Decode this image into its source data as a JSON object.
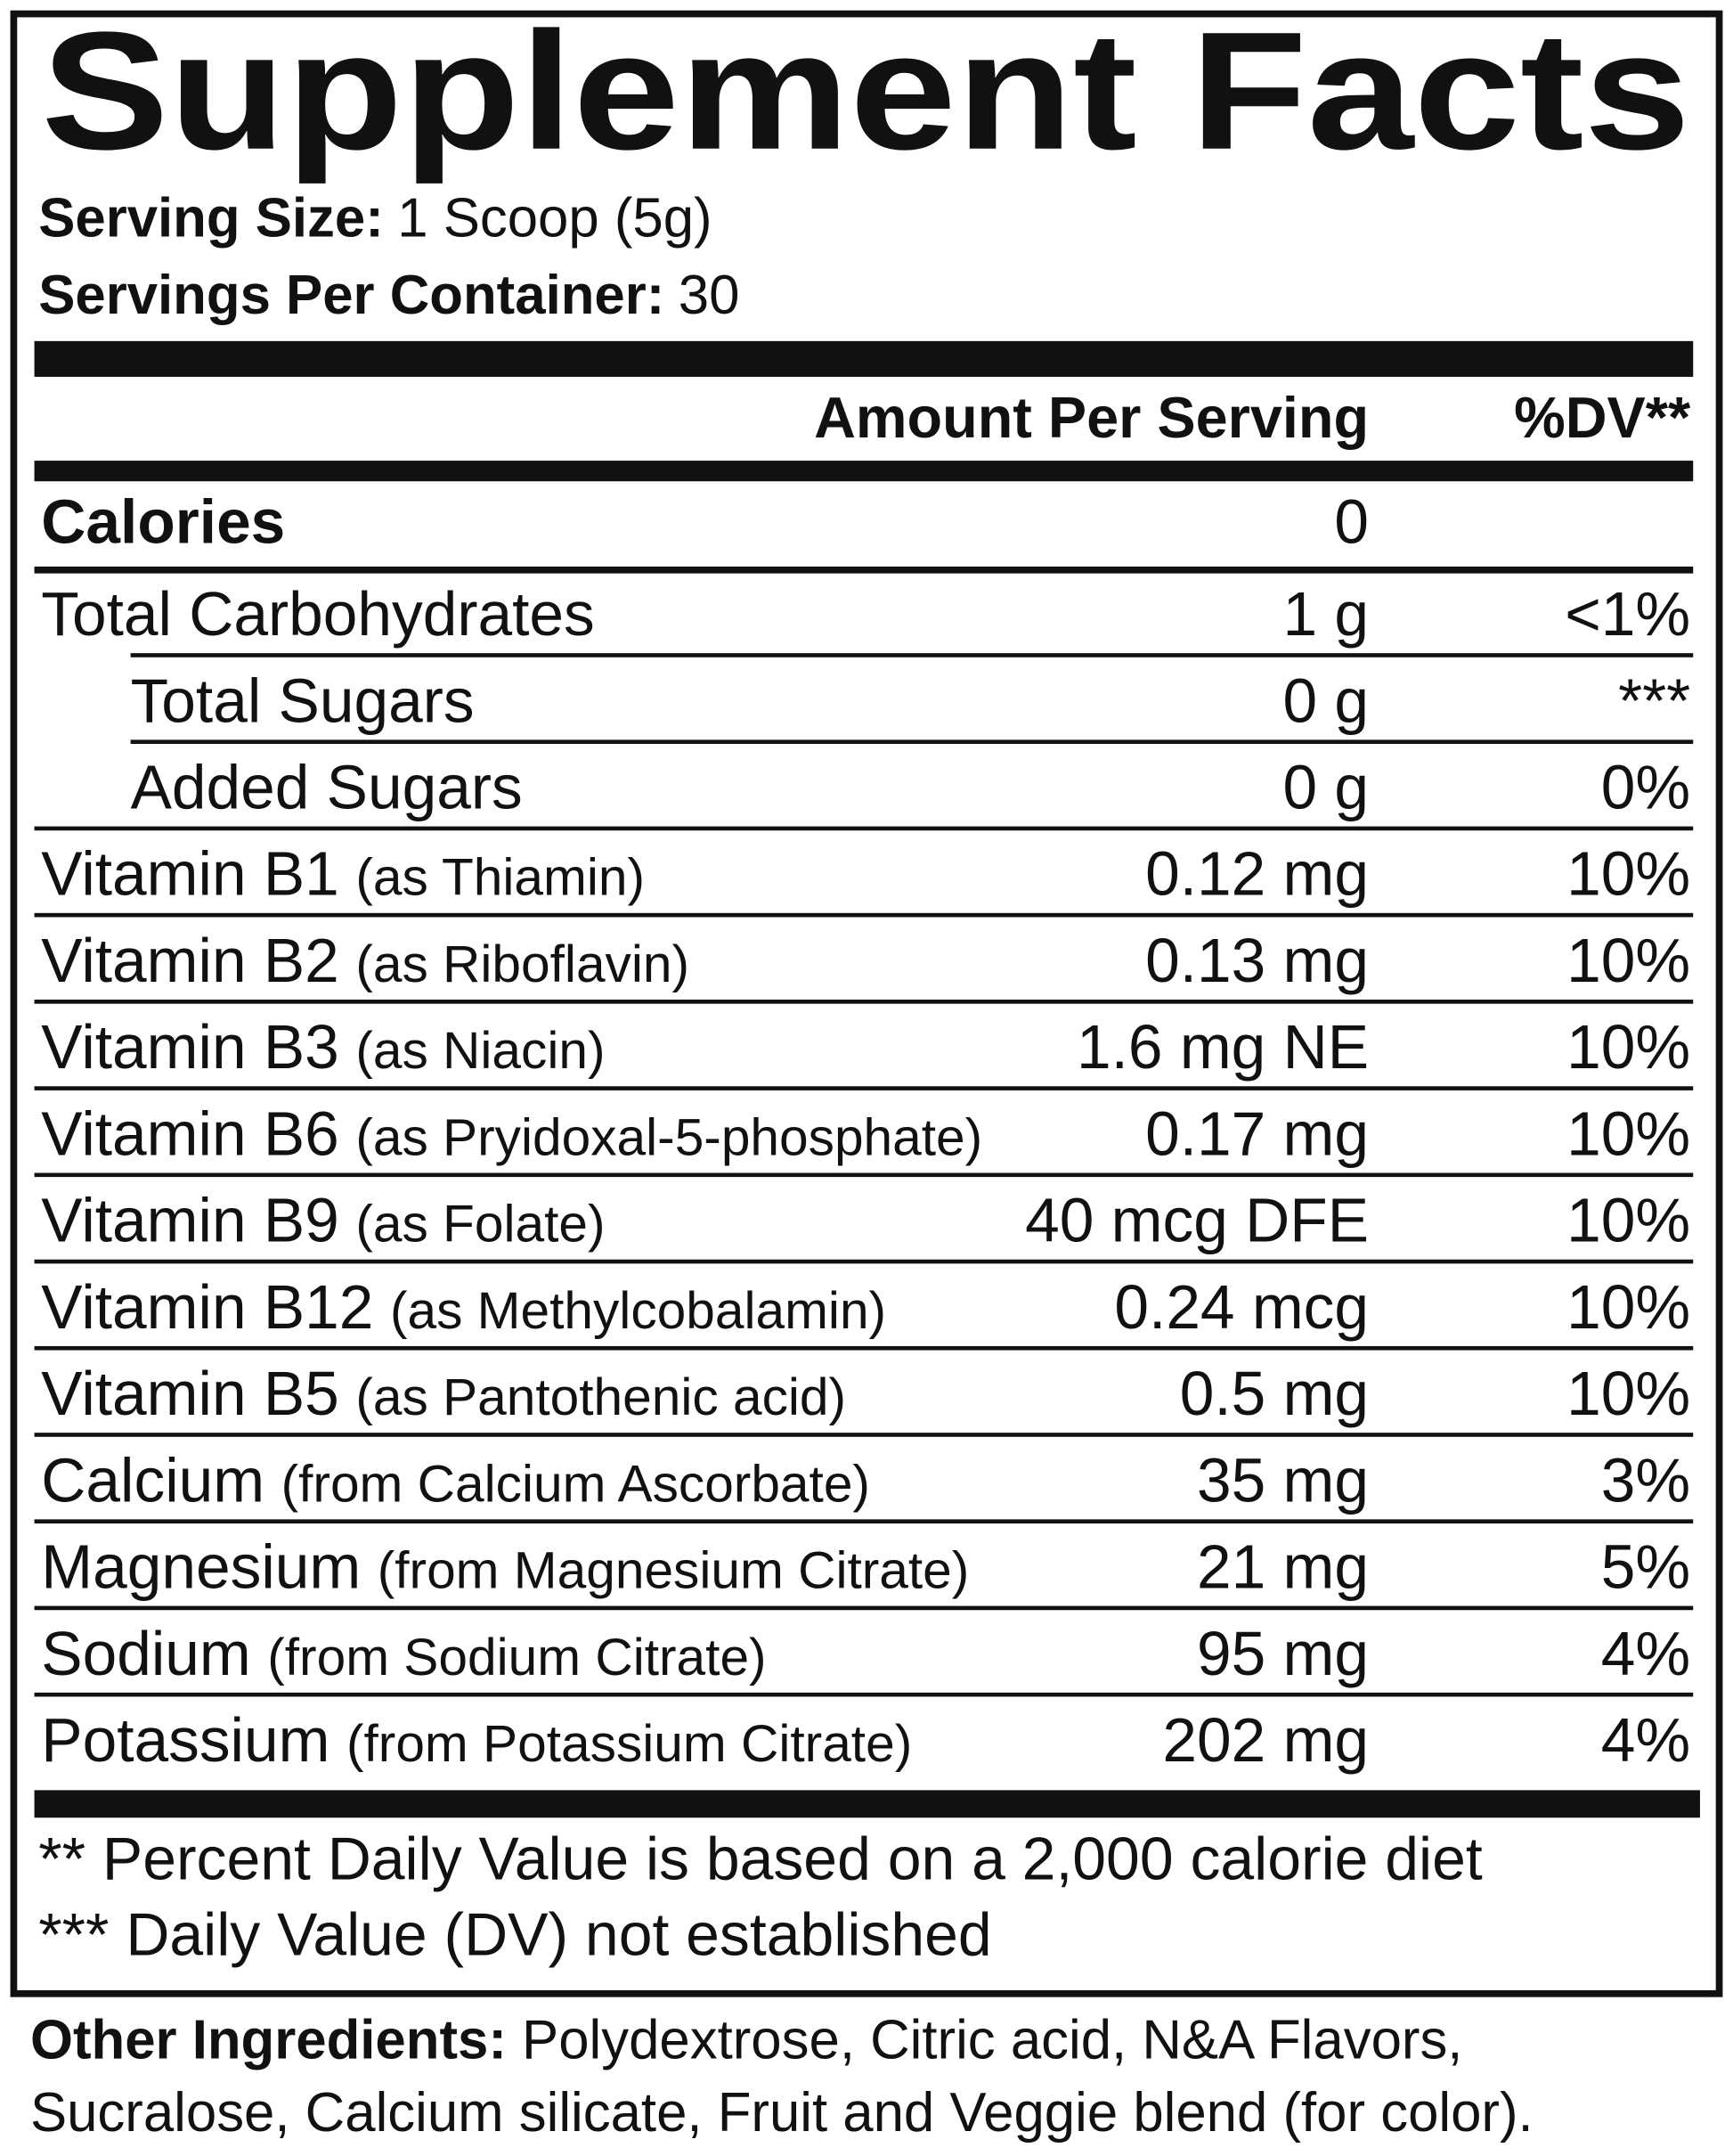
{
  "title": "Supplement Facts",
  "serving_size": {
    "label": "Serving Size:",
    "value": "1 Scoop (5g)"
  },
  "servings_per_container": {
    "label": "Servings Per Container:",
    "value": "30"
  },
  "header": {
    "amount": "Amount Per Serving",
    "dv": "%DV**"
  },
  "rows": [
    {
      "name": "Calories",
      "amount": "0"
    },
    {
      "name": "Total Carbohydrates",
      "amount": "1 g",
      "dv": "<1%"
    },
    {
      "name": "Total Sugars",
      "amount": "0 g",
      "dv": "***"
    },
    {
      "name": "Added Sugars",
      "amount": "0 g",
      "dv": "0%"
    },
    {
      "name": "Vitamin B1",
      "note": "(as Thiamin)",
      "amount": "0.12 mg",
      "dv": "10%"
    },
    {
      "name": "Vitamin B2",
      "note": "(as Riboflavin)",
      "amount": "0.13 mg",
      "dv": "10%"
    },
    {
      "name": "Vitamin B3",
      "note": "(as Niacin)",
      "amount": "1.6 mg NE",
      "dv": "10%"
    },
    {
      "name": "Vitamin B6",
      "note": "(as Pryidoxal-5-phosphate)",
      "amount": "0.17 mg",
      "dv": "10%"
    },
    {
      "name": "Vitamin B9",
      "note": "(as Folate)",
      "amount": "40 mcg DFE",
      "dv": "10%"
    },
    {
      "name": "Vitamin B12",
      "note": "(as Methylcobalamin)",
      "amount": "0.24 mcg",
      "dv": "10%"
    },
    {
      "name": "Vitamin B5",
      "note": "(as Pantothenic acid)",
      "amount": "0.5 mg",
      "dv": "10%"
    },
    {
      "name": "Calcium",
      "note": "(from Calcium Ascorbate)",
      "amount": "35 mg",
      "dv": "3%"
    },
    {
      "name": "Magnesium",
      "note": "(from Magnesium Citrate)",
      "amount": "21 mg",
      "dv": "5%"
    },
    {
      "name": "Sodium",
      "note": "(from Sodium Citrate)",
      "amount": "95 mg",
      "dv": "4%"
    },
    {
      "name": "Potassium",
      "note": "(from Potassium Citrate)",
      "amount": "202 mg",
      "dv": "4%"
    }
  ],
  "footnotes": [
    "** Percent Daily Value is based on a 2,000 calorie diet",
    "*** Daily Value (DV) not established"
  ],
  "other_ingredients": {
    "label": "Other Ingredients:",
    "lines": [
      " Polydextrose, Citric acid, N&A Flavors,",
      "Sucralose, Calcium silicate, Fruit and Veggie blend (for color)."
    ]
  }
}
